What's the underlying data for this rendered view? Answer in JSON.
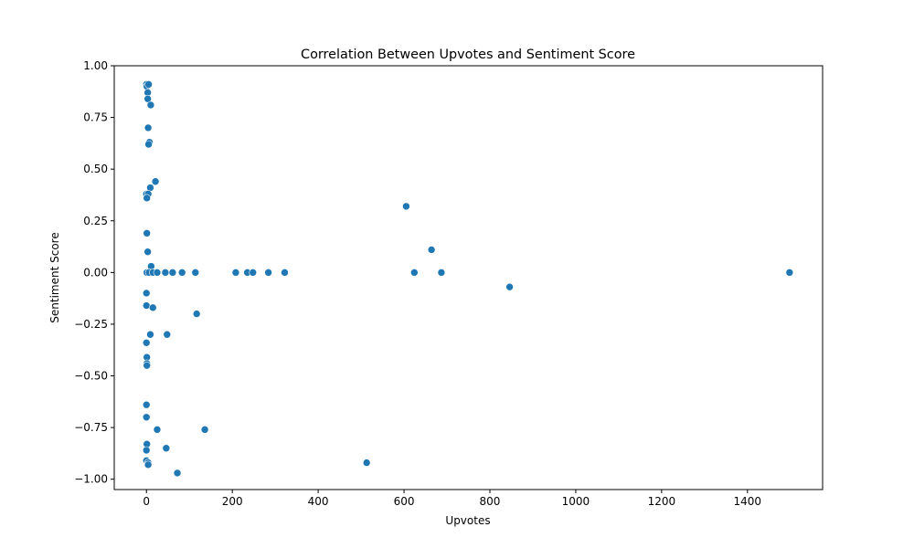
{
  "chart_data": {
    "type": "scatter",
    "title": "Correlation Between Upvotes and Sentiment Score",
    "xlabel": "Upvotes",
    "ylabel": "Sentiment Score",
    "xlim": [
      -75,
      1575
    ],
    "ylim": [
      -1.05,
      1.0
    ],
    "xticks": [
      0,
      200,
      400,
      600,
      800,
      1000,
      1200,
      1400
    ],
    "xtick_labels": [
      "0",
      "200",
      "400",
      "600",
      "800",
      "1000",
      "1200",
      "1400"
    ],
    "yticks": [
      1.0,
      0.75,
      0.5,
      0.25,
      0.0,
      -0.25,
      -0.5,
      -0.75,
      -1.0
    ],
    "ytick_labels": [
      "1.00",
      "0.75",
      "0.50",
      "0.25",
      "0.00",
      "−0.25",
      "−0.50",
      "−0.75",
      "−1.00"
    ],
    "grid": false,
    "marker_color": "#1f77b4",
    "points": [
      {
        "x": 0,
        "y": 0.91
      },
      {
        "x": 1,
        "y": 0.9
      },
      {
        "x": 3,
        "y": 0.87
      },
      {
        "x": 5,
        "y": 0.91
      },
      {
        "x": 3,
        "y": 0.84
      },
      {
        "x": 10,
        "y": 0.81
      },
      {
        "x": 4,
        "y": 0.7
      },
      {
        "x": 7,
        "y": 0.63
      },
      {
        "x": 5,
        "y": 0.62
      },
      {
        "x": 21,
        "y": 0.44
      },
      {
        "x": 9,
        "y": 0.41
      },
      {
        "x": 0,
        "y": 0.38
      },
      {
        "x": 4,
        "y": 0.38
      },
      {
        "x": 1,
        "y": 0.36
      },
      {
        "x": 1,
        "y": 0.19
      },
      {
        "x": 3,
        "y": 0.1
      },
      {
        "x": 11,
        "y": 0.03
      },
      {
        "x": 1,
        "y": 0.0
      },
      {
        "x": 6,
        "y": 0.0
      },
      {
        "x": 15,
        "y": 0.0
      },
      {
        "x": 25,
        "y": 0.0
      },
      {
        "x": 44,
        "y": 0.0
      },
      {
        "x": 61,
        "y": 0.0
      },
      {
        "x": 83,
        "y": 0.0
      },
      {
        "x": 114,
        "y": 0.0
      },
      {
        "x": 208,
        "y": 0.0
      },
      {
        "x": 235,
        "y": 0.0
      },
      {
        "x": 248,
        "y": 0.0
      },
      {
        "x": 284,
        "y": 0.0
      },
      {
        "x": 322,
        "y": 0.0
      },
      {
        "x": 0,
        "y": -0.1
      },
      {
        "x": 0,
        "y": -0.16
      },
      {
        "x": 15,
        "y": -0.17
      },
      {
        "x": 117,
        "y": -0.2
      },
      {
        "x": 9,
        "y": -0.3
      },
      {
        "x": 48,
        "y": -0.3
      },
      {
        "x": 0,
        "y": -0.34
      },
      {
        "x": 0,
        "y": -0.41
      },
      {
        "x": 1,
        "y": -0.41
      },
      {
        "x": 1,
        "y": -0.44
      },
      {
        "x": 1,
        "y": -0.45
      },
      {
        "x": 0,
        "y": -0.64
      },
      {
        "x": 0,
        "y": -0.7
      },
      {
        "x": 25,
        "y": -0.76
      },
      {
        "x": 136,
        "y": -0.76
      },
      {
        "x": 1,
        "y": -0.83
      },
      {
        "x": 46,
        "y": -0.85
      },
      {
        "x": 0,
        "y": -0.86
      },
      {
        "x": 0,
        "y": -0.91
      },
      {
        "x": 4,
        "y": -0.92
      },
      {
        "x": 4,
        "y": -0.93
      },
      {
        "x": 72,
        "y": -0.97
      },
      {
        "x": 513,
        "y": -0.92
      },
      {
        "x": 605,
        "y": 0.32
      },
      {
        "x": 624,
        "y": 0.0
      },
      {
        "x": 664,
        "y": 0.11
      },
      {
        "x": 687,
        "y": 0.0
      },
      {
        "x": 846,
        "y": -0.07
      },
      {
        "x": 1498,
        "y": 0.0
      }
    ]
  }
}
